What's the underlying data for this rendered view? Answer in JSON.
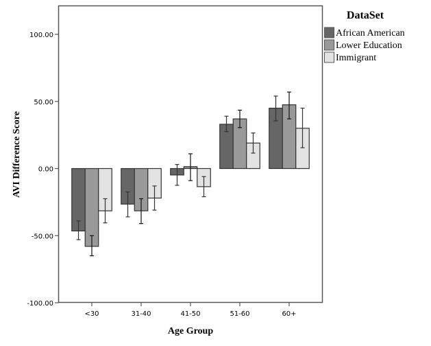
{
  "chart_data": {
    "type": "bar",
    "title": "",
    "xlabel": "Age Group",
    "ylabel": "AVI Difference Score",
    "ylim": [
      -100,
      120
    ],
    "yticks": [
      -100,
      -50,
      0,
      50,
      100
    ],
    "ytick_labels": [
      "-100.00",
      "-50.00",
      "0.00",
      "50.00",
      "100.00"
    ],
    "categories": [
      "<30",
      "31-40",
      "41-50",
      "51-60",
      "60+"
    ],
    "legend": {
      "title": "DataSet",
      "placement": "right"
    },
    "grid": false,
    "error_bars": true,
    "series": [
      {
        "name": "African American",
        "color": "#666666",
        "values": [
          -46.5,
          -26.5,
          -4.8,
          33,
          45
        ],
        "err_low": [
          -53,
          -36,
          -12.5,
          27.5,
          35.5
        ],
        "err_high": [
          -39,
          -17.5,
          3,
          39,
          54
        ]
      },
      {
        "name": "Lower Education",
        "color": "#999999",
        "values": [
          -58,
          -31.5,
          1.4,
          37,
          47.5
        ],
        "err_low": [
          -65,
          -41,
          -9,
          30.5,
          37
        ],
        "err_high": [
          -50,
          -22.5,
          11,
          43.5,
          57
        ]
      },
      {
        "name": "Immigrant",
        "color": "#e3e3e3",
        "values": [
          -31.5,
          -22,
          -13.5,
          19,
          30
        ],
        "err_low": [
          -40.5,
          -31,
          -21,
          11.5,
          15.5
        ],
        "err_high": [
          -22.5,
          -13,
          -6,
          26.5,
          45
        ]
      }
    ]
  }
}
